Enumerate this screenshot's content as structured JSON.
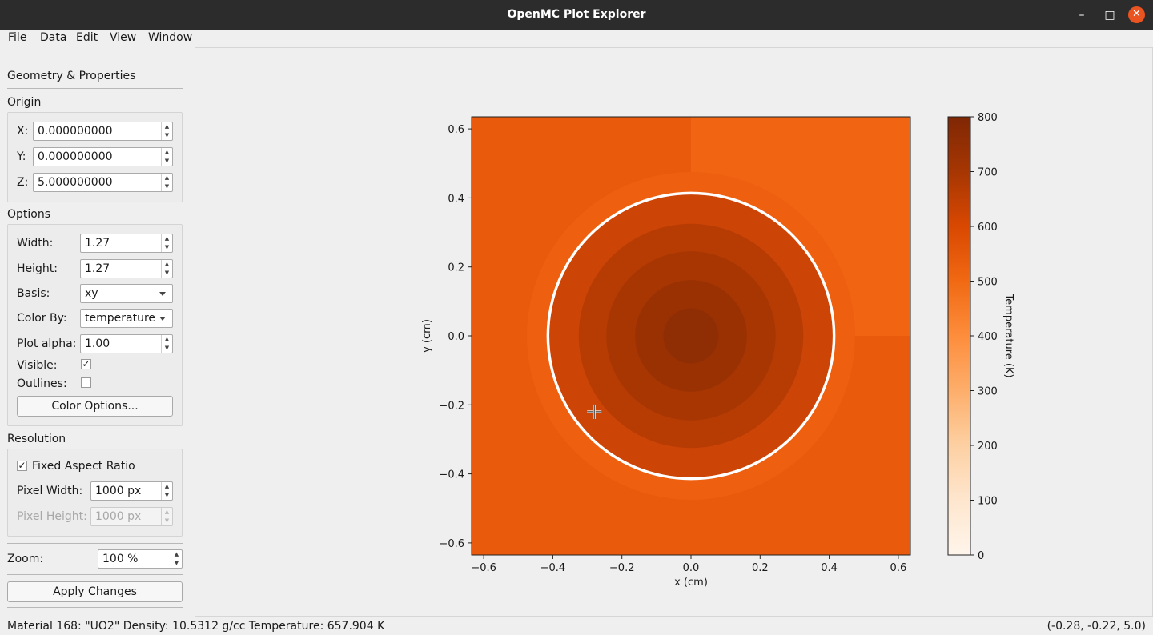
{
  "window": {
    "title": "OpenMC Plot Explorer",
    "minimize": "–",
    "maximize": "□",
    "close": "✕"
  },
  "menu": [
    "File",
    "Data",
    "Edit",
    "View",
    "Window"
  ],
  "sidebar": {
    "header": "Geometry & Properties",
    "origin": {
      "title": "Origin",
      "x_label": "X:",
      "x_value": "0.000000000",
      "y_label": "Y:",
      "y_value": "0.000000000",
      "z_label": "Z:",
      "z_value": "5.000000000"
    },
    "options": {
      "title": "Options",
      "width_label": "Width:",
      "width_value": "1.27",
      "height_label": "Height:",
      "height_value": "1.27",
      "basis_label": "Basis:",
      "basis_value": "xy",
      "colorby_label": "Color By:",
      "colorby_value": "temperature",
      "alpha_label": "Plot alpha:",
      "alpha_value": "1.00",
      "visible_label": "Visible:",
      "visible_checked": "✓",
      "outlines_label": "Outlines:",
      "color_options_button": "Color Options..."
    },
    "resolution": {
      "title": "Resolution",
      "fixed_aspect_label": "Fixed Aspect Ratio",
      "fixed_aspect_checked": "✓",
      "pixel_width_label": "Pixel Width:",
      "pixel_width_value": "1000 px",
      "pixel_height_label": "Pixel Height:",
      "pixel_height_value": "1000 px"
    },
    "zoom_label": "Zoom:",
    "zoom_value": "100 %",
    "apply_button": "Apply Changes"
  },
  "statusbar": {
    "info": "Material 168: \"UO2\"  Density: 10.5312 g/cc Temperature: 657.904 K",
    "coords": "(-0.28, -0.22, 5.0)"
  },
  "chart_data": {
    "type": "heatmap",
    "title": "",
    "xlabel": "x (cm)",
    "ylabel": "y (cm)",
    "xlim": [
      -0.635,
      0.635
    ],
    "ylim": [
      -0.635,
      0.635
    ],
    "x_ticks": [
      "−0.6",
      "−0.4",
      "−0.2",
      "0.0",
      "0.2",
      "0.4",
      "0.6"
    ],
    "x_tick_values": [
      -0.6,
      -0.4,
      -0.2,
      0.0,
      0.2,
      0.4,
      0.6
    ],
    "y_ticks": [
      "0.6",
      "0.4",
      "0.2",
      "0.0",
      "−0.2",
      "−0.4",
      "−0.6"
    ],
    "y_tick_values": [
      0.6,
      0.4,
      0.2,
      0.0,
      -0.2,
      -0.4,
      -0.6
    ],
    "colorbar": {
      "label": "Temperature (K)",
      "range": [
        0,
        800
      ],
      "ticks": [
        "800",
        "700",
        "600",
        "500",
        "400",
        "300",
        "200",
        "100",
        "0"
      ],
      "tick_values": [
        800,
        700,
        600,
        500,
        400,
        300,
        200,
        100,
        0
      ],
      "colormap": "Oranges"
    },
    "regions": [
      {
        "shape": "quadrant",
        "value": 560,
        "color": "#e95a0c"
      },
      {
        "shape": "quadrant-upper-right",
        "value": 580,
        "color": "#f06412"
      },
      {
        "shape": "circle",
        "radius": 0.475,
        "value": 575,
        "color": "#ee5f10"
      },
      {
        "shape": "circle",
        "radius": 0.418,
        "value": 0,
        "color": "#ffffff"
      },
      {
        "shape": "circle",
        "radius": 0.41,
        "value": 650,
        "color": "#cc4406"
      },
      {
        "shape": "circle",
        "radius": 0.325,
        "value": 690,
        "color": "#b73c04"
      },
      {
        "shape": "circle",
        "radius": 0.245,
        "value": 715,
        "color": "#a83603"
      },
      {
        "shape": "circle",
        "radius": 0.162,
        "value": 740,
        "color": "#9a3103"
      },
      {
        "shape": "circle",
        "radius": 0.08,
        "value": 760,
        "color": "#8f2d04"
      }
    ],
    "cursor": {
      "x": -0.28,
      "y": -0.22
    }
  }
}
